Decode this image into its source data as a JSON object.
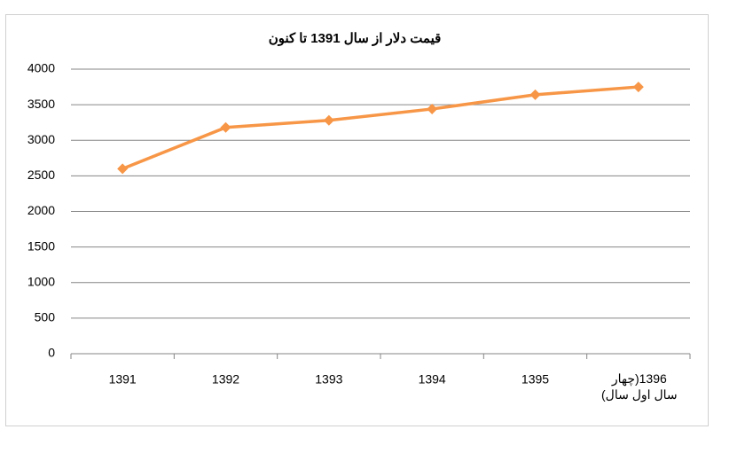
{
  "chart_data": {
    "type": "line",
    "title": "قیمت دلار از سال 1391 تا کنون",
    "categories": [
      "1391",
      "1392",
      "1393",
      "1394",
      "1395",
      "1396(چهار سال اول سال)"
    ],
    "series": [
      {
        "name": "قیمت دلار",
        "color": "#f79646",
        "values": [
          2600,
          3180,
          3280,
          3440,
          3640,
          3750
        ]
      }
    ],
    "ylim": [
      0,
      4000
    ],
    "yticks": [
      0,
      500,
      1000,
      1500,
      2000,
      2500,
      3000,
      3500,
      4000
    ],
    "grid": true
  }
}
